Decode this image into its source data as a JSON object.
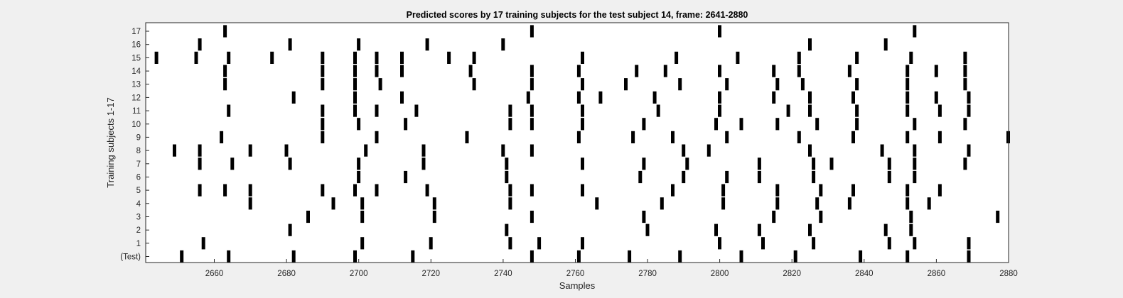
{
  "chart_data": {
    "type": "event-raster",
    "title": "Predicted scores by 17 training subjects for the test subject 14, frame: 2641-2880",
    "xlabel": "Samples",
    "ylabel": "Training subjects 1-17",
    "xlim": [
      2641,
      2880
    ],
    "xticks": [
      2660,
      2680,
      2700,
      2720,
      2740,
      2760,
      2780,
      2800,
      2820,
      2840,
      2860,
      2880
    ],
    "xtick_labels": [
      "2660",
      "2680",
      "2700",
      "2720",
      "2740",
      "2760",
      "2780",
      "2800",
      "2820",
      "2840",
      "2860",
      "2880"
    ],
    "grid": false,
    "mark_color": "#000000",
    "rows": [
      {
        "label": "(Test)",
        "x": [
          2651,
          2664,
          2682,
          2699,
          2715,
          2748,
          2761,
          2775,
          2789,
          2806,
          2821,
          2839,
          2852,
          2869
        ]
      },
      {
        "label": "1",
        "x": [
          2657,
          2701,
          2720,
          2742,
          2750,
          2762,
          2800,
          2812,
          2826,
          2847,
          2854,
          2869
        ]
      },
      {
        "label": "2",
        "x": [
          2681,
          2741,
          2780,
          2799,
          2811,
          2825,
          2846,
          2853
        ]
      },
      {
        "label": "3",
        "x": [
          2686,
          2701,
          2721,
          2748,
          2779,
          2815,
          2828,
          2853,
          2877
        ]
      },
      {
        "label": "4",
        "x": [
          2670,
          2693,
          2701,
          2721,
          2742,
          2766,
          2784,
          2801,
          2816,
          2827,
          2836,
          2852,
          2858
        ]
      },
      {
        "label": "5",
        "x": [
          2656,
          2663,
          2670,
          2690,
          2699,
          2705,
          2719,
          2742,
          2748,
          2762,
          2787,
          2801,
          2816,
          2828,
          2837,
          2852,
          2861
        ]
      },
      {
        "label": "6",
        "x": [
          2700,
          2713,
          2741,
          2778,
          2790,
          2802,
          2811,
          2826,
          2847,
          2854
        ]
      },
      {
        "label": "7",
        "x": [
          2656,
          2665,
          2681,
          2700,
          2718,
          2741,
          2762,
          2779,
          2791,
          2811,
          2826,
          2831,
          2847,
          2854,
          2868
        ]
      },
      {
        "label": "8",
        "x": [
          2649,
          2656,
          2670,
          2680,
          2702,
          2718,
          2740,
          2748,
          2790,
          2797,
          2825,
          2845,
          2854,
          2869
        ]
      },
      {
        "label": "9",
        "x": [
          2662,
          2690,
          2705,
          2730,
          2761,
          2776,
          2787,
          2802,
          2822,
          2837,
          2852,
          2861,
          2880
        ]
      },
      {
        "label": "10",
        "x": [
          2690,
          2700,
          2713,
          2742,
          2748,
          2762,
          2779,
          2799,
          2806,
          2816,
          2827,
          2838,
          2854,
          2868
        ]
      },
      {
        "label": "11",
        "x": [
          2664,
          2690,
          2699,
          2705,
          2716,
          2742,
          2748,
          2762,
          2783,
          2800,
          2819,
          2825,
          2838,
          2852,
          2861,
          2869
        ]
      },
      {
        "label": "12",
        "x": [
          2682,
          2699,
          2712,
          2747,
          2761,
          2767,
          2782,
          2800,
          2815,
          2825,
          2837,
          2852,
          2860,
          2869
        ]
      },
      {
        "label": "13",
        "x": [
          2663,
          2690,
          2699,
          2706,
          2732,
          2748,
          2762,
          2774,
          2789,
          2802,
          2816,
          2823,
          2838,
          2852,
          2868
        ]
      },
      {
        "label": "14",
        "x": [
          2663,
          2690,
          2699,
          2705,
          2712,
          2731,
          2748,
          2761,
          2777,
          2785,
          2800,
          2815,
          2822,
          2836,
          2852,
          2860,
          2868
        ]
      },
      {
        "label": "15",
        "x": [
          2644,
          2655,
          2664,
          2676,
          2690,
          2699,
          2705,
          2712,
          2725,
          2732,
          2762,
          2788,
          2805,
          2822,
          2838,
          2853,
          2868
        ]
      },
      {
        "label": "16",
        "x": [
          2656,
          2681,
          2700,
          2719,
          2740,
          2825,
          2846
        ]
      },
      {
        "label": "17",
        "x": [
          2663,
          2748,
          2800,
          2854
        ]
      }
    ]
  }
}
